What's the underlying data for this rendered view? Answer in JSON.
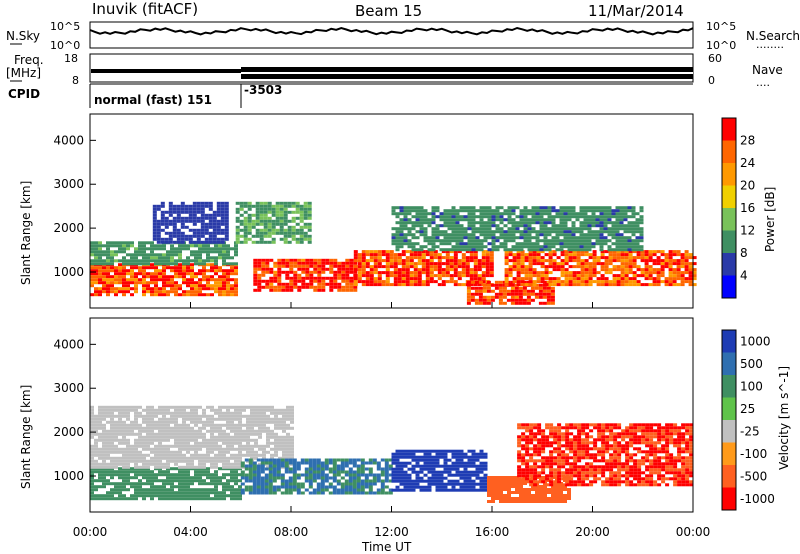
{
  "header": {
    "station": "Inuvik (fitACF)",
    "beam": "Beam 15",
    "date": "11/Mar/2014"
  },
  "noise_panel": {
    "left_label": "N.Sky",
    "right_label": "N.Search",
    "ticks_left": [
      "10^5",
      "10^0"
    ],
    "ticks_right": [
      "10^5",
      "10^0"
    ],
    "right_line": "........"
  },
  "freq_panel": {
    "left_label_1": "Freq.",
    "left_label_2": "[MHz]",
    "ticks_left": [
      "18",
      "8"
    ],
    "ticks_right": [
      "60",
      "0"
    ],
    "right_label": "Nave",
    "right_line": "....",
    "cpid_label": "CPID"
  },
  "cpid": {
    "mode_1": "normal (fast) 151",
    "mode_2": "-3503"
  },
  "x_axis": {
    "label": "Time UT",
    "ticks": [
      "00:00",
      "04:00",
      "08:00",
      "12:00",
      "16:00",
      "20:00",
      "00:00"
    ]
  },
  "power_panel": {
    "ylabel": "Slant Range [km]",
    "yticks": [
      "1000",
      "2000",
      "3000",
      "4000"
    ],
    "colorbar_label": "Power [dB]",
    "colorbar_ticks": [
      "4",
      "8",
      "12",
      "16",
      "20",
      "24",
      "28"
    ],
    "colors": [
      "#0000ff",
      "#2a3aa8",
      "#3f8f62",
      "#79c25a",
      "#f0d000",
      "#ff9900",
      "#ff6600",
      "#ff0000"
    ]
  },
  "velocity_panel": {
    "ylabel": "Slant Range [km]",
    "yticks": [
      "1000",
      "2000",
      "3000",
      "4000"
    ],
    "colorbar_label": "Velocity [m s^-1]",
    "colorbar_ticks": [
      "1000",
      "500",
      "100",
      "25",
      "-25",
      "-100",
      "-500",
      "-1000"
    ],
    "colors": [
      "#1e3cb4",
      "#2f6fb0",
      "#3f8f62",
      "#5fc34a",
      "#c0c0c0",
      "#ff9a1a",
      "#ff6020",
      "#ff0000"
    ]
  },
  "chart_data": [
    {
      "type": "heatmap",
      "title": "Power",
      "ylabel": "Slant Range [km]",
      "xlabel": "Time UT",
      "xlim": [
        0,
        24
      ],
      "ylim": [
        180,
        4600
      ],
      "colorbar": "Power [dB]",
      "bands": [
        {
          "t0": 0.0,
          "t1": 5.8,
          "r0": 450,
          "r1": 1200,
          "value": 26
        },
        {
          "t0": 0.0,
          "t1": 5.8,
          "r0": 1200,
          "r1": 1700,
          "value": 10
        },
        {
          "t0": 2.5,
          "t1": 5.5,
          "r0": 1700,
          "r1": 2600,
          "value": 6
        },
        {
          "t0": 5.8,
          "t1": 8.8,
          "r0": 1700,
          "r1": 2600,
          "value": 11
        },
        {
          "t0": 6.5,
          "t1": 10.5,
          "r0": 600,
          "r1": 1300,
          "value": 28
        },
        {
          "t0": 10.5,
          "t1": 16.0,
          "r0": 700,
          "r1": 1500,
          "value": 27
        },
        {
          "t0": 15.0,
          "t1": 18.5,
          "r0": 300,
          "r1": 800,
          "value": 28
        },
        {
          "t0": 16.5,
          "t1": 24.0,
          "r0": 700,
          "r1": 1500,
          "value": 25
        },
        {
          "t0": 12.0,
          "t1": 22.0,
          "r0": 1500,
          "r1": 2500,
          "value": 9
        }
      ]
    },
    {
      "type": "heatmap",
      "title": "Velocity",
      "ylabel": "Slant Range [km]",
      "xlabel": "Time UT",
      "xlim": [
        0,
        24
      ],
      "ylim": [
        180,
        4600
      ],
      "colorbar": "Velocity [m s^-1]",
      "bands": [
        {
          "t0": 0.0,
          "t1": 6.0,
          "r0": 500,
          "r1": 1200,
          "value": 80
        },
        {
          "t0": 0.0,
          "t1": 8.0,
          "r0": 1200,
          "r1": 2600,
          "value": 0
        },
        {
          "t0": 6.0,
          "t1": 12.0,
          "r0": 600,
          "r1": 1400,
          "value": 100
        },
        {
          "t0": 12.0,
          "t1": 15.8,
          "r0": 700,
          "r1": 1600,
          "value": 700
        },
        {
          "t0": 15.8,
          "t1": 19.0,
          "r0": 400,
          "r1": 1000,
          "value": -300
        },
        {
          "t0": 17.0,
          "t1": 24.0,
          "r0": 800,
          "r1": 2200,
          "value": -500
        }
      ]
    }
  ]
}
